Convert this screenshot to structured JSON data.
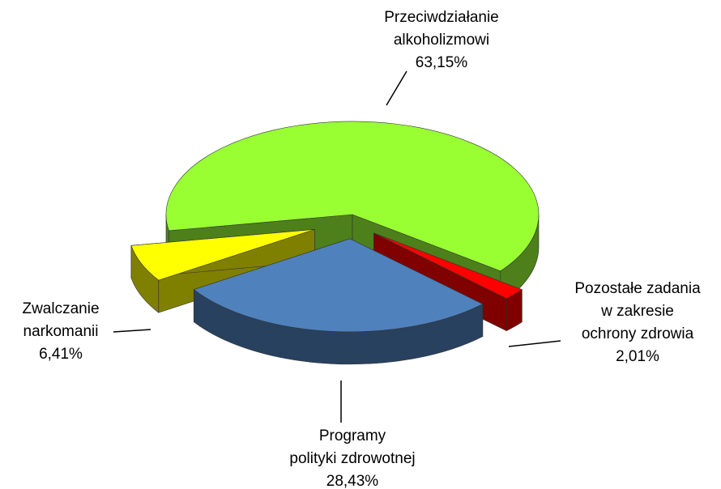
{
  "chart_data": {
    "type": "pie3d",
    "categories": [
      "Przeciwdziałanie\nalkoholizmowi",
      "Pozostałe zadania\nw zakresie\nochrony zdrowia",
      "Programy\npolityki zdrowotnej",
      "Zwalczanie\nnarkomanii"
    ],
    "values": [
      63.15,
      2.01,
      28.43,
      6.41
    ],
    "value_labels": [
      "63,15%",
      "2,01%",
      "28,43%",
      "6,41%"
    ],
    "colors": [
      "#99ff33",
      "#ff0000",
      "#4f81bd",
      "#ffff00"
    ]
  }
}
